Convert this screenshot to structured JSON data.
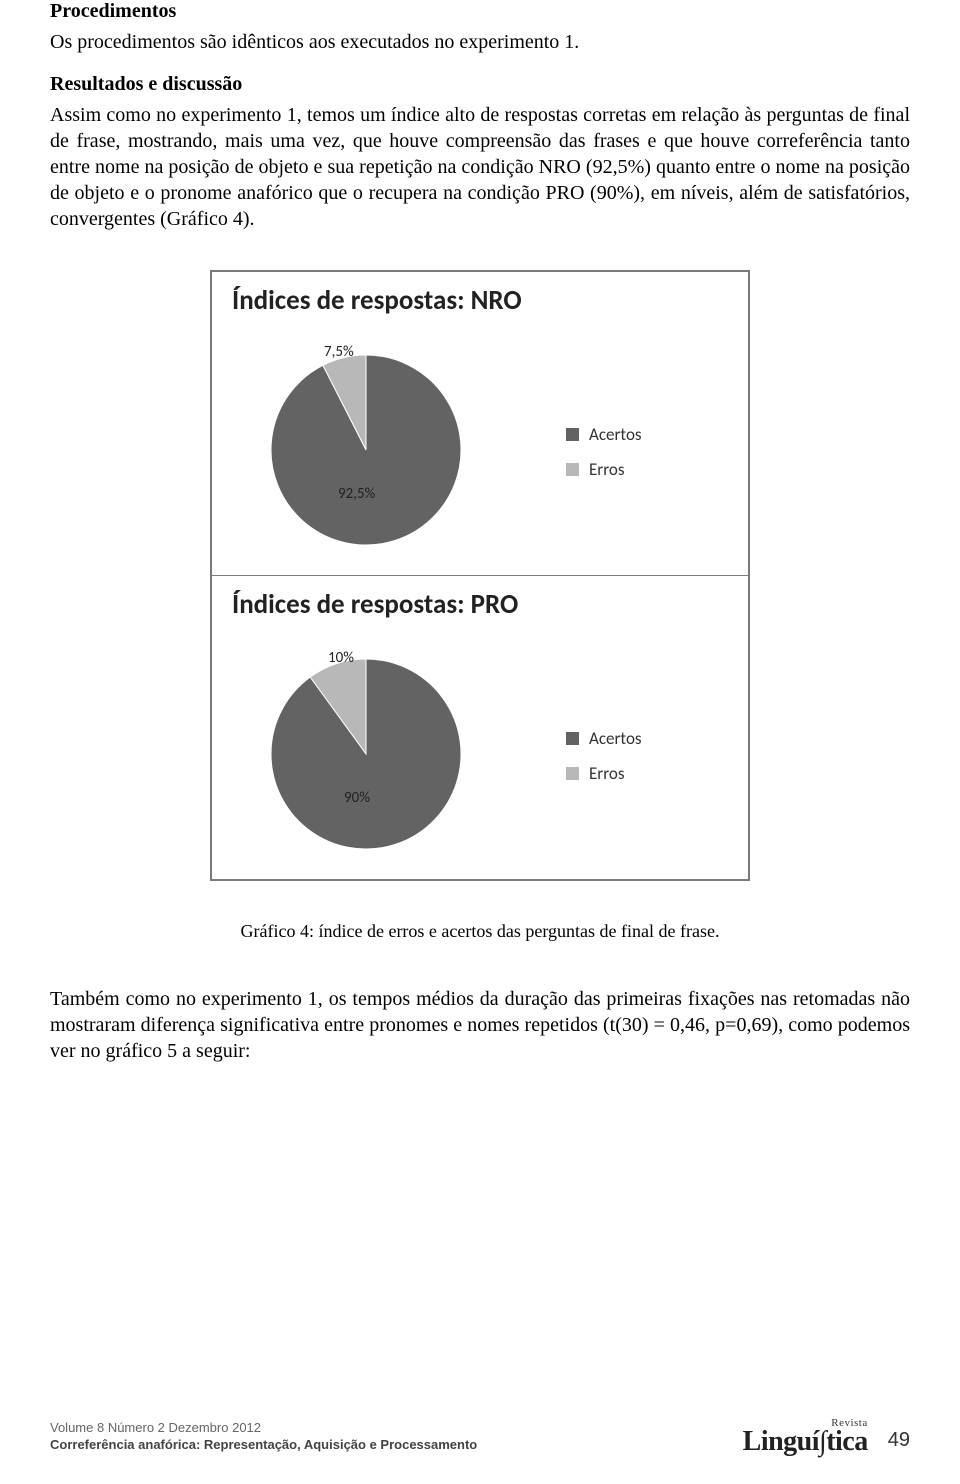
{
  "sections": {
    "procedimentos": {
      "heading": "Procedimentos",
      "body": "Os procedimentos são idênticos aos executados no experimento 1."
    },
    "resultados": {
      "heading": "Resultados e discussão",
      "body": "Assim como no experimento 1, temos um índice alto de respostas corretas em relação às perguntas de final de frase, mostrando, mais uma vez, que houve compreensão das frases e que houve correferência tanto entre nome na posição de objeto e sua repetição na condição NRO (92,5%) quanto entre o nome na posição de objeto e o pronome anafórico que o recupera na condição PRO (90%), em níveis, além de satisfatórios, convergentes (Gráfico 4)."
    },
    "caption": "Gráfico 4: índice de erros e acertos das perguntas de final de frase.",
    "postcaption": "Também como no experimento 1, os tempos médios da duração das primeiras fixações nas retomadas não mostraram diferença significativa entre pronomes e nomes repetidos (t(30) = 0,46, p=0,69), como podemos ver no gráfico 5 a seguir:"
  },
  "chart_nro": {
    "type": "pie",
    "title": "Índices de respostas: NRO",
    "title_fontsize": 27,
    "title_color": "#222222",
    "slices": [
      {
        "label": "92,5%",
        "value": 92.5,
        "color": "#636363",
        "legend": "Acertos"
      },
      {
        "label": "7,5%",
        "value": 7.5,
        "color": "#b8b8b8",
        "legend": "Erros"
      }
    ],
    "label_fontsize": 15,
    "label_color": "#222222",
    "legend_fontsize": 17,
    "legend_swatch_acertos": "#636363",
    "legend_swatch_erros": "#b8b8b8",
    "background_color": "#ffffff",
    "border_color": "#7a7a7a",
    "pie_radius": 95,
    "start_angle_deg": -90
  },
  "chart_pro": {
    "type": "pie",
    "title": "Índices de respostas: PRO",
    "title_fontsize": 27,
    "title_color": "#222222",
    "slices": [
      {
        "label": "90%",
        "value": 90,
        "color": "#636363",
        "legend": "Acertos"
      },
      {
        "label": "10%",
        "value": 10,
        "color": "#b8b8b8",
        "legend": "Erros"
      }
    ],
    "label_fontsize": 15,
    "label_color": "#222222",
    "legend_fontsize": 17,
    "legend_swatch_acertos": "#636363",
    "legend_swatch_erros": "#b8b8b8",
    "background_color": "#ffffff",
    "border_color": "#7a7a7a",
    "pie_radius": 95,
    "start_angle_deg": -90
  },
  "footer": {
    "line1": "Volume 8 Número 2 Dezembro 2012",
    "line2": "Correferência anafórica: Representação, Aquisição e Processamento",
    "journal_small": "Revista",
    "journal_big": "Linguí∫tica",
    "page": "49"
  }
}
